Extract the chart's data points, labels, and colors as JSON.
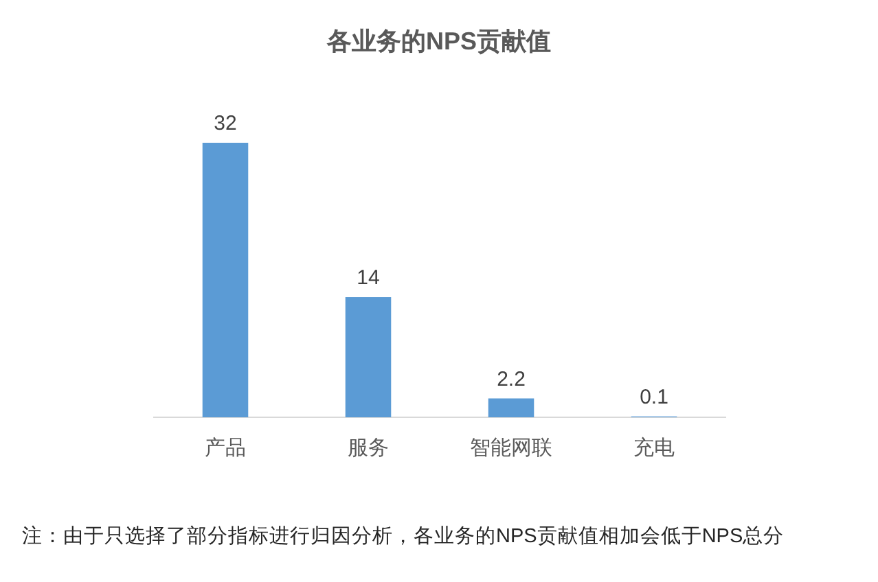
{
  "chart_data": {
    "type": "bar",
    "title": "各业务的NPS贡献值",
    "categories": [
      "产品",
      "服务",
      "智能网联",
      "充电"
    ],
    "values": [
      32,
      14,
      2.2,
      0.1
    ],
    "color": "#5b9bd5",
    "data_labels": true,
    "grid": false,
    "legend": false,
    "annotations": [
      "注：由于只选择了部分指标进行归因分析，各业务的NPS贡献值相加会低于NPS总分"
    ]
  }
}
